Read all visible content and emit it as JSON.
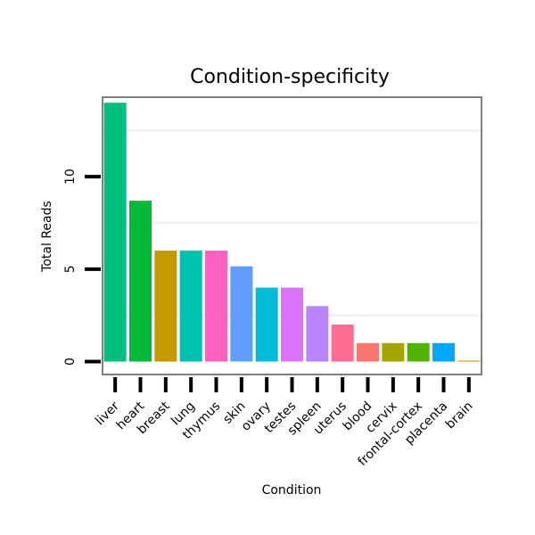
{
  "chart_data": {
    "type": "bar",
    "title": "Condition-specificity",
    "xlabel": "Condition",
    "ylabel": "Total Reads",
    "ylim": [
      -0.7,
      14.3
    ],
    "yticks": [
      0,
      5,
      10
    ],
    "grid": true,
    "categories": [
      "liver",
      "heart",
      "breast",
      "lung",
      "thymus",
      "skin",
      "ovary",
      "testes",
      "spleen",
      "uterus",
      "blood",
      "cervix",
      "frontal-cortex",
      "placenta",
      "brain"
    ],
    "values": [
      14,
      8.7,
      6,
      6,
      6,
      5.15,
      4,
      4,
      3,
      2,
      1,
      1,
      1,
      1,
      0.05
    ],
    "colors": [
      "#00BF7D",
      "#00BA38",
      "#C49A00",
      "#00C0AF",
      "#FF61C3",
      "#619CFF",
      "#00BCD8",
      "#DB72FB",
      "#B983FF",
      "#FF6C91",
      "#F8766D",
      "#A3A500",
      "#53B400",
      "#00A9FF",
      "#D89000"
    ]
  }
}
